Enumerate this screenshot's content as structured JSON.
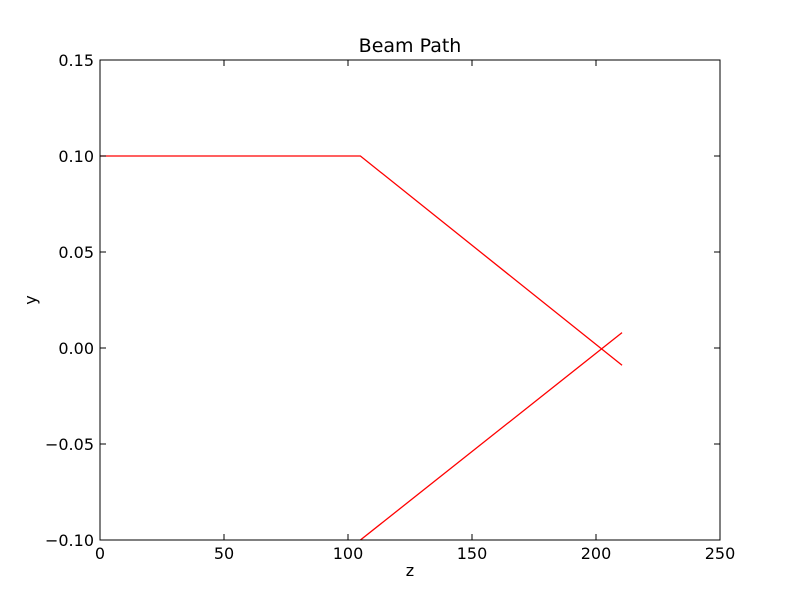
{
  "chart_data": {
    "type": "line",
    "title": "Beam Path",
    "xlabel": "z",
    "ylabel": "y",
    "xlim": [
      0,
      250
    ],
    "ylim": [
      -0.1,
      0.15
    ],
    "grid": false,
    "legend": "none",
    "x_ticks": [
      0,
      50,
      100,
      150,
      200,
      250
    ],
    "x_tick_labels": [
      "0",
      "50",
      "100",
      "150",
      "200",
      "250"
    ],
    "y_ticks": [
      -0.1,
      -0.05,
      0.0,
      0.05,
      0.1,
      0.15
    ],
    "y_tick_labels": [
      "−0.10",
      "−0.05",
      "0.00",
      "0.05",
      "0.10",
      "0.15"
    ],
    "series": [
      {
        "color": "#ff0000",
        "points": [
          [
            0,
            0.1
          ],
          [
            105,
            0.1
          ],
          [
            210.5,
            -0.009
          ]
        ]
      },
      {
        "color": "#ff0000",
        "points": [
          [
            105,
            -0.1
          ],
          [
            210.5,
            0.008
          ]
        ]
      }
    ]
  }
}
